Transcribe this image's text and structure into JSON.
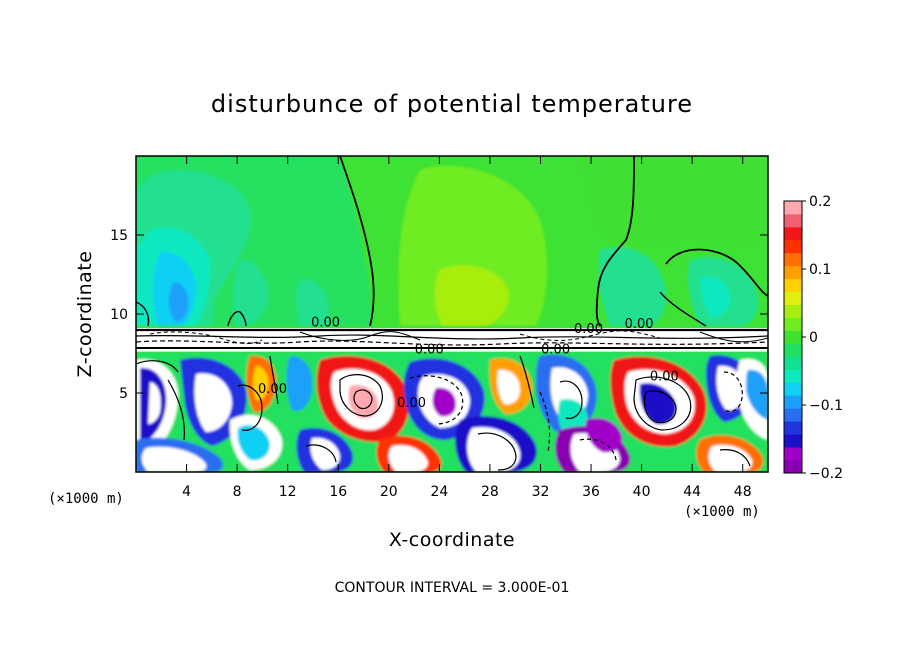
{
  "chart_data": {
    "type": "heatmap",
    "title": "disturbunce of potential temperature",
    "xlabel": "X-coordinate",
    "ylabel": "Z-coordinate",
    "x_unit": "(×1000 m)",
    "x_unit_right": "(×1000 m)",
    "xlim": [
      0,
      50
    ],
    "ylim": [
      0,
      20
    ],
    "x_ticks": [
      4,
      8,
      12,
      16,
      20,
      24,
      28,
      32,
      36,
      40,
      44,
      48
    ],
    "y_ticks": [
      5,
      10,
      15
    ],
    "colorbar": {
      "range": [
        -0.2,
        0.2
      ],
      "tick_values": [
        0.2,
        0.1,
        0,
        -0.1,
        -0.2
      ],
      "tick_labels": [
        "0.2",
        "0.1",
        "0",
        "−0.1",
        "−0.2"
      ],
      "colors": [
        "#8a00b0",
        "#a000c8",
        "#1a10c8",
        "#2233e0",
        "#2a6ef0",
        "#1aa0f8",
        "#10d0f4",
        "#10e8c0",
        "#10e090",
        "#20e060",
        "#40e030",
        "#70ec20",
        "#a8ee10",
        "#e0ee10",
        "#ffd000",
        "#ffa000",
        "#ff7000",
        "#ff3000",
        "#f01818",
        "#f06070",
        "#ffa8b0"
      ]
    },
    "contour_labels": [
      {
        "text": "0.00",
        "x": 15.0,
        "z": 9.2
      },
      {
        "text": "0.00",
        "x": 23.2,
        "z": 7.5
      },
      {
        "text": "0.00",
        "x": 35.8,
        "z": 8.8
      },
      {
        "text": "0.00",
        "x": 39.8,
        "z": 9.1
      },
      {
        "text": "0.00",
        "x": 33.2,
        "z": 7.5
      },
      {
        "text": "0.00",
        "x": 41.8,
        "z": 5.8
      },
      {
        "text": "0.00",
        "x": 21.8,
        "z": 4.1
      },
      {
        "text": "0.00",
        "x": 10.8,
        "z": 5.0
      }
    ],
    "contour_interval_text": "CONTOUR INTERVAL =  3.000E-01"
  }
}
